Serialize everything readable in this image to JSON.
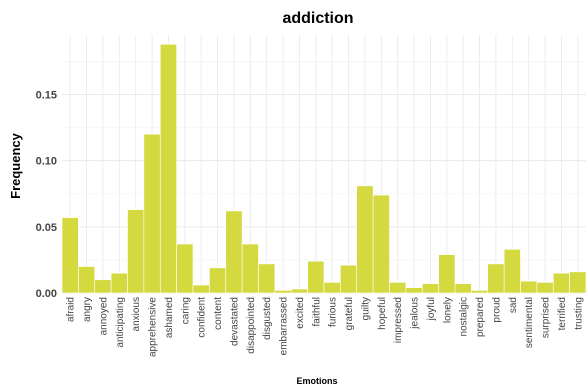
{
  "chart_data": {
    "type": "bar",
    "title": "addiction",
    "xlabel": "Emotions",
    "ylabel": "Frequency",
    "ylim": [
      0,
      0.195
    ],
    "yticks": [
      0.0,
      0.05,
      0.1,
      0.15
    ],
    "ytick_labels": [
      "0.00",
      "0.05",
      "0.10",
      "0.15"
    ],
    "grid": true,
    "bar_color": "#d4d93f",
    "categories": [
      "afraid",
      "angry",
      "annoyed",
      "anticipating",
      "anxious",
      "apprehensive",
      "ashamed",
      "caring",
      "confident",
      "content",
      "devastated",
      "disappointed",
      "disgusted",
      "embarrassed",
      "excited",
      "faithful",
      "furious",
      "grateful",
      "guilty",
      "hopeful",
      "impressed",
      "jealous",
      "joyful",
      "lonely",
      "nostalgic",
      "prepared",
      "proud",
      "sad",
      "sentimental",
      "surprised",
      "terrified",
      "trusting"
    ],
    "values": [
      0.057,
      0.02,
      0.01,
      0.015,
      0.063,
      0.12,
      0.188,
      0.037,
      0.006,
      0.019,
      0.062,
      0.037,
      0.022,
      0.002,
      0.003,
      0.024,
      0.008,
      0.021,
      0.081,
      0.074,
      0.008,
      0.004,
      0.007,
      0.029,
      0.007,
      0.002,
      0.022,
      0.033,
      0.009,
      0.008,
      0.015,
      0.016
    ]
  }
}
